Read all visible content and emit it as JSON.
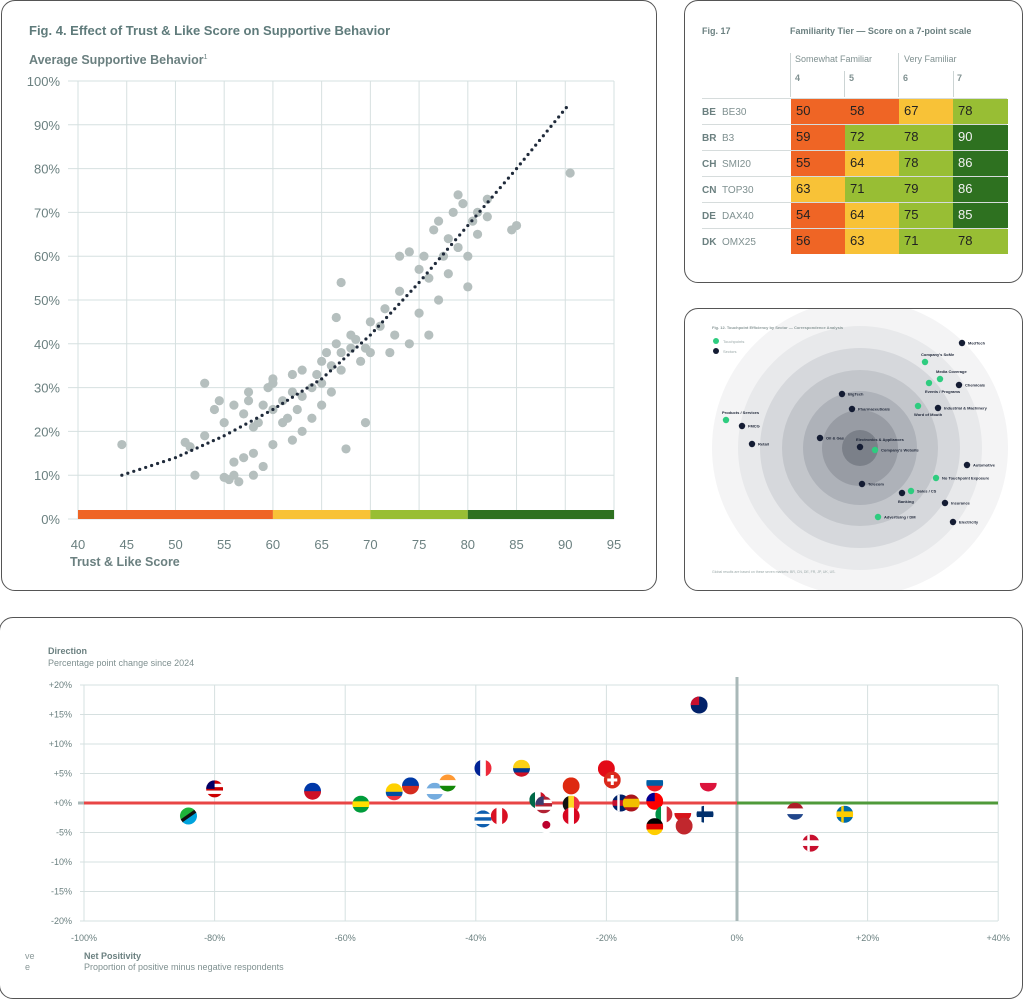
{
  "fig4": {
    "title": "Fig. 4. Effect of Trust & Like Score on Supportive Behavior",
    "ylabel": "Average Supportive Behavior",
    "ylabel_sup": "1",
    "xlabel": "Trust & Like Score"
  },
  "fig17": {
    "fig_label": "Fig. 17",
    "title": "Familiarity Tier — Score on a 7-point scale",
    "groups": [
      "Somewhat Familiar",
      "Very Familiar"
    ],
    "columns": [
      "4",
      "5",
      "6",
      "7"
    ],
    "rows": [
      {
        "code": "BE",
        "index": "BE30",
        "values": [
          50,
          58,
          67,
          78
        ]
      },
      {
        "code": "BR",
        "index": "B3",
        "values": [
          59,
          72,
          78,
          90
        ]
      },
      {
        "code": "CH",
        "index": "SMI20",
        "values": [
          55,
          64,
          78,
          86
        ]
      },
      {
        "code": "CN",
        "index": "TOP30",
        "values": [
          63,
          71,
          79,
          86
        ]
      },
      {
        "code": "DE",
        "index": "DAX40",
        "values": [
          54,
          64,
          75,
          85
        ]
      },
      {
        "code": "DK",
        "index": "OMX25",
        "values": [
          56,
          63,
          71,
          78
        ]
      }
    ],
    "colors": {
      "orange": "#ef6525",
      "yellow": "#f8c237",
      "light_green": "#98be34",
      "dark_green": "#2e7120"
    }
  },
  "fig12": {
    "title": "Fig. 12. Touchpoint Efficiency by Sector — Correspondence Analysis",
    "legend": [
      {
        "label": "Touchpoints",
        "color": "#2ecc7f"
      },
      {
        "label": "Sectors",
        "color": "#141c33"
      }
    ],
    "points": [
      {
        "label": "MedTech",
        "type": "sector"
      },
      {
        "label": "Company's SoMe",
        "type": "touchpoint"
      },
      {
        "label": "Media Coverage",
        "type": "touchpoint"
      },
      {
        "label": "Events / Programs",
        "type": "touchpoint"
      },
      {
        "label": "Chemicals",
        "type": "sector"
      },
      {
        "label": "BigTech",
        "type": "sector"
      },
      {
        "label": "Pharmaceuticals",
        "type": "sector"
      },
      {
        "label": "Word of Mouth",
        "type": "touchpoint"
      },
      {
        "label": "Industrial & Machinery",
        "type": "sector"
      },
      {
        "label": "Products / Services",
        "type": "touchpoint"
      },
      {
        "label": "FMCG",
        "type": "sector"
      },
      {
        "label": "Retail",
        "type": "sector"
      },
      {
        "label": "Oil & Gas",
        "type": "sector"
      },
      {
        "label": "Electronics & Appliances",
        "type": "sector"
      },
      {
        "label": "Company's Website",
        "type": "touchpoint"
      },
      {
        "label": "Automotive",
        "type": "sector"
      },
      {
        "label": "No Touchpoint Exposure",
        "type": "touchpoint"
      },
      {
        "label": "Telecom",
        "type": "sector"
      },
      {
        "label": "Sales / CS",
        "type": "touchpoint"
      },
      {
        "label": "Banking",
        "type": "sector"
      },
      {
        "label": "Insurance",
        "type": "sector"
      },
      {
        "label": "Advertising / DM",
        "type": "touchpoint"
      },
      {
        "label": "Electricity",
        "type": "sector"
      }
    ],
    "footnote": "Global results are based on these seven markets: BR, CN, DE, FR, JP, UK, US."
  },
  "direction": {
    "ytitle": "Direction",
    "ysubtitle": "Percentage point change since 2024",
    "xtitle": "Net Positivity",
    "xsubtitle": "Proportion of positive minus negative respondents",
    "cut_labels": [
      "ve",
      "e"
    ]
  },
  "chart_data": [
    {
      "type": "scatter",
      "title": "Fig. 4. Effect of Trust & Like Score on Supportive Behavior",
      "xlabel": "Trust & Like Score",
      "ylabel": "Average Supportive Behavior",
      "xlim": [
        40,
        95
      ],
      "ylim": [
        0,
        100
      ],
      "xticks": [
        "40",
        "45",
        "50",
        "55",
        "60",
        "65",
        "70",
        "75",
        "80",
        "85",
        "90",
        "95"
      ],
      "yticks": [
        "0%",
        "10%",
        "20%",
        "30%",
        "40%",
        "50%",
        "60%",
        "70%",
        "80%",
        "90%",
        "100%"
      ],
      "grid": true,
      "points": [
        [
          44.5,
          17
        ],
        [
          51,
          17.5
        ],
        [
          51.5,
          16.5
        ],
        [
          52,
          10
        ],
        [
          53,
          31
        ],
        [
          53,
          19
        ],
        [
          54,
          25
        ],
        [
          54.5,
          27
        ],
        [
          55,
          22
        ],
        [
          55,
          9.5
        ],
        [
          55.5,
          9
        ],
        [
          56,
          10
        ],
        [
          56,
          26
        ],
        [
          56,
          13
        ],
        [
          56.5,
          8.5
        ],
        [
          57,
          24
        ],
        [
          57.5,
          29
        ],
        [
          57.5,
          27
        ],
        [
          58,
          21
        ],
        [
          58,
          10
        ],
        [
          58.5,
          22
        ],
        [
          59,
          26
        ],
        [
          59.5,
          30
        ],
        [
          60,
          31
        ],
        [
          60,
          25
        ],
        [
          60,
          32
        ],
        [
          61,
          22
        ],
        [
          61,
          27
        ],
        [
          61.5,
          23
        ],
        [
          62,
          29
        ],
        [
          62,
          33
        ],
        [
          62.5,
          25
        ],
        [
          63,
          28
        ],
        [
          63,
          34
        ],
        [
          64,
          30
        ],
        [
          64,
          23
        ],
        [
          64.5,
          33
        ],
        [
          65,
          36
        ],
        [
          65,
          31
        ],
        [
          65.5,
          38
        ],
        [
          66,
          35
        ],
        [
          66,
          29
        ],
        [
          66.5,
          40
        ],
        [
          66.5,
          46
        ],
        [
          67,
          34
        ],
        [
          67,
          54
        ],
        [
          67,
          38
        ],
        [
          67.5,
          16
        ],
        [
          68,
          39
        ],
        [
          68,
          42
        ],
        [
          68.5,
          41
        ],
        [
          69,
          36
        ],
        [
          69.5,
          39
        ],
        [
          69.5,
          22
        ],
        [
          70,
          45
        ],
        [
          70,
          38
        ],
        [
          71,
          44
        ],
        [
          71.5,
          48
        ],
        [
          72,
          38
        ],
        [
          72.5,
          42
        ],
        [
          73,
          60
        ],
        [
          73,
          52
        ],
        [
          74,
          40
        ],
        [
          74,
          61
        ],
        [
          75,
          57
        ],
        [
          75,
          47
        ],
        [
          75.5,
          60
        ],
        [
          76,
          55
        ],
        [
          76,
          42
        ],
        [
          76.5,
          66
        ],
        [
          77,
          50
        ],
        [
          77,
          68
        ],
        [
          77.5,
          60
        ],
        [
          78,
          64
        ],
        [
          78,
          56
        ],
        [
          78.5,
          70
        ],
        [
          79,
          62
        ],
        [
          79,
          74
        ],
        [
          79.5,
          72
        ],
        [
          80,
          60
        ],
        [
          80,
          53
        ],
        [
          80.5,
          68
        ],
        [
          81,
          70
        ],
        [
          81,
          65
        ],
        [
          82,
          69
        ],
        [
          82,
          73
        ],
        [
          84.5,
          66
        ],
        [
          85,
          67
        ],
        [
          90.5,
          79
        ],
        [
          58,
          15
        ],
        [
          59,
          12
        ],
        [
          57,
          14
        ],
        [
          60,
          17
        ],
        [
          63,
          20
        ],
        [
          65,
          26
        ],
        [
          62,
          18
        ]
      ],
      "trend": [
        [
          44.5,
          10
        ],
        [
          50,
          14
        ],
        [
          55,
          19
        ],
        [
          60,
          25
        ],
        [
          65,
          32
        ],
        [
          70,
          42
        ],
        [
          75,
          54
        ],
        [
          80,
          67
        ],
        [
          85,
          80
        ],
        [
          90.5,
          95
        ]
      ],
      "bands": [
        {
          "from": 40,
          "to": 60,
          "color": "#ef6525"
        },
        {
          "from": 60,
          "to": 70,
          "color": "#f8c237"
        },
        {
          "from": 70,
          "to": 80,
          "color": "#98be34"
        },
        {
          "from": 80,
          "to": 95,
          "color": "#2e7120"
        }
      ],
      "point_color": "#b5bfbe",
      "trend_color": "#1f2a3a"
    },
    {
      "type": "scatter",
      "xlabel": "Net Positivity",
      "ylabel": "Direction",
      "xlim": [
        -100,
        40
      ],
      "ylim": [
        -20,
        20
      ],
      "xticks": [
        "-100%",
        "-80%",
        "-60%",
        "-40%",
        "-20%",
        "0%",
        "+20%",
        "+40%"
      ],
      "yticks": [
        "-20%",
        "-15%",
        "-10%",
        "-5%",
        "+0%",
        "+5%",
        "+10%",
        "+15%",
        "+20%"
      ],
      "grid": true,
      "baseline_colors": {
        "negative": "#e84545",
        "positive": "#4f9a3a"
      },
      "points": [
        {
          "country": "TZ",
          "x": -84,
          "y": -2.2
        },
        {
          "country": "MY",
          "x": -80,
          "y": 2.4
        },
        {
          "country": "PH",
          "x": -65,
          "y": 2
        },
        {
          "country": "BR",
          "x": -57.6,
          "y": -0.2
        },
        {
          "country": "EC",
          "x": -52.5,
          "y": 1.9
        },
        {
          "country": "CL",
          "x": -50,
          "y": 2.9
        },
        {
          "country": "AR",
          "x": -46.3,
          "y": 2
        },
        {
          "country": "IN",
          "x": -44.3,
          "y": 3.4
        },
        {
          "country": "FR",
          "x": -38.9,
          "y": 5.9
        },
        {
          "country": "GR",
          "x": -38.9,
          "y": -2.7
        },
        {
          "country": "PE",
          "x": -36.4,
          "y": -2.2
        },
        {
          "country": "CO",
          "x": -33,
          "y": 5.9
        },
        {
          "country": "MX",
          "x": -30.5,
          "y": 0.5
        },
        {
          "country": "US",
          "x": -29.6,
          "y": -0.3
        },
        {
          "country": "JP",
          "x": -29.2,
          "y": -3.7
        },
        {
          "country": "CN",
          "x": -25.4,
          "y": 2.9
        },
        {
          "country": "BE",
          "x": -25.4,
          "y": -0.2
        },
        {
          "country": "CA",
          "x": -25.4,
          "y": -2.2
        },
        {
          "country": "TR",
          "x": -20,
          "y": 5.8
        },
        {
          "country": "CH",
          "x": -19.1,
          "y": 3.9
        },
        {
          "country": "UK",
          "x": -17.8,
          "y": 0
        },
        {
          "country": "ES",
          "x": -16.2,
          "y": 0
        },
        {
          "country": "SI",
          "x": -12.6,
          "y": 3.4
        },
        {
          "country": "TW",
          "x": -12.6,
          "y": 0.3
        },
        {
          "country": "IT",
          "x": -11.2,
          "y": -1.9
        },
        {
          "country": "DE",
          "x": -12.6,
          "y": -4
        },
        {
          "country": "CZ",
          "x": -8.3,
          "y": -1.7
        },
        {
          "country": "MA",
          "x": -8.1,
          "y": -3.9
        },
        {
          "country": "FI",
          "x": -4.9,
          "y": -1.9
        },
        {
          "country": "PL",
          "x": -4.4,
          "y": 3.4
        },
        {
          "country": "AU",
          "x": -5.8,
          "y": 16.6
        },
        {
          "country": "NL",
          "x": 8.9,
          "y": -1.4
        },
        {
          "country": "SE",
          "x": 16.5,
          "y": -1.9
        },
        {
          "country": "DK",
          "x": 11.3,
          "y": -6.8
        }
      ]
    }
  ]
}
